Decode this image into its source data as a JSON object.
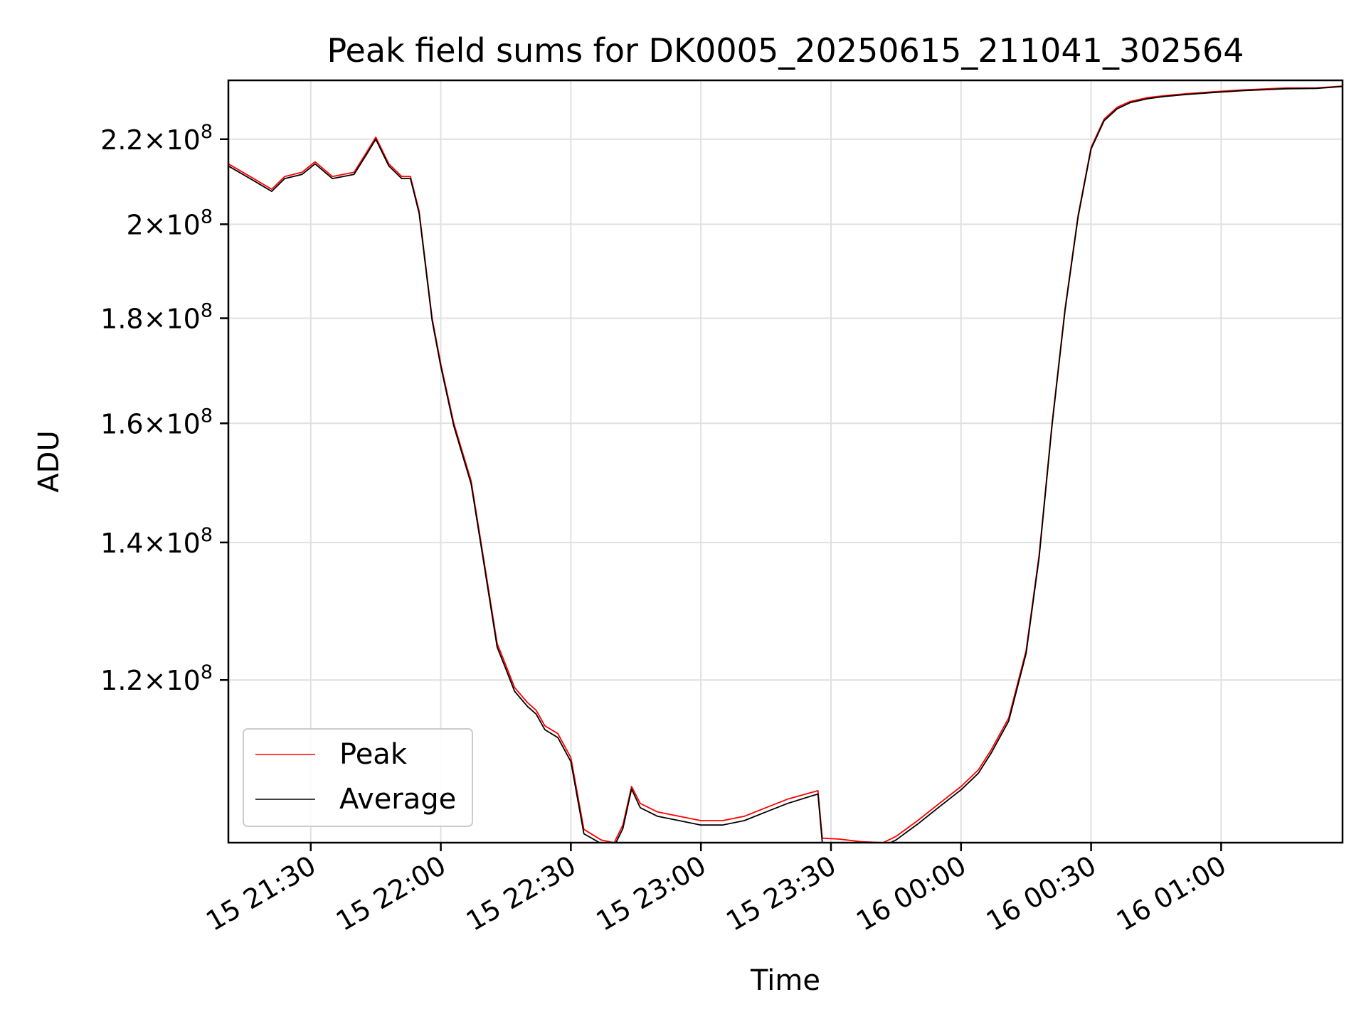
{
  "chart_data": {
    "type": "line",
    "title": "Peak field sums for DK0005_20250615_211041_302564",
    "xlabel": "Time",
    "ylabel": "ADU",
    "yscale": "log",
    "grid": true,
    "legend_position": "lower-left",
    "xlim": [
      "15 21:11",
      "16 01:28"
    ],
    "ylim": [
      100000000,
      235000000
    ],
    "xticks": [
      {
        "t": "15 21:30",
        "label": "15 21:30"
      },
      {
        "t": "15 22:00",
        "label": "15 22:00"
      },
      {
        "t": "15 22:30",
        "label": "15 22:30"
      },
      {
        "t": "15 23:00",
        "label": "15 23:00"
      },
      {
        "t": "15 23:30",
        "label": "15 23:30"
      },
      {
        "t": "16 00:00",
        "label": "16 00:00"
      },
      {
        "t": "16 00:30",
        "label": "16 00:30"
      },
      {
        "t": "16 01:00",
        "label": "16 01:00"
      }
    ],
    "yticks": [
      {
        "v": 120000000,
        "mant": "1.2",
        "exp": "8"
      },
      {
        "v": 140000000,
        "mant": "1.4",
        "exp": "8"
      },
      {
        "v": 160000000,
        "mant": "1.6",
        "exp": "8"
      },
      {
        "v": 180000000,
        "mant": "1.8",
        "exp": "8"
      },
      {
        "v": 200000000,
        "mant": "2",
        "exp": "8"
      },
      {
        "v": 220000000,
        "mant": "2.2",
        "exp": "8"
      }
    ],
    "series": [
      {
        "name": "Peak",
        "color": "#ff0000",
        "x": [
          "15 21:11",
          "15 21:16",
          "15 21:21",
          "15 21:24",
          "15 21:28",
          "15 21:31",
          "15 21:35",
          "15 21:40",
          "15 21:43",
          "15 21:45",
          "15 21:48",
          "15 21:51",
          "15 21:53",
          "15 21:55",
          "15 21:58",
          "15 22:00",
          "15 22:03",
          "15 22:07",
          "15 22:10",
          "15 22:13",
          "15 22:15",
          "15 22:17",
          "15 22:20",
          "15 22:22",
          "15 22:24",
          "15 22:27",
          "15 22:30",
          "15 22:33",
          "15 22:37",
          "15 22:40",
          "15 22:42",
          "15 22:44",
          "15 22:46",
          "15 22:50",
          "15 22:55",
          "15 23:00",
          "15 23:05",
          "15 23:10",
          "15 23:15",
          "15 23:20",
          "15 23:27",
          "15 23:28",
          "15 23:32",
          "15 23:37",
          "15 23:42",
          "15 23:45",
          "15 23:50",
          "15 23:55",
          "16 00:00",
          "16 00:04",
          "16 00:07",
          "16 00:11",
          "16 00:15",
          "16 00:18",
          "16 00:21",
          "16 00:24",
          "16 00:27",
          "16 00:30",
          "16 00:33",
          "16 00:36",
          "16 00:39",
          "16 00:43",
          "16 00:47",
          "16 00:52",
          "16 00:58",
          "16 01:05",
          "16 01:15",
          "16 01:22",
          "16 01:28"
        ],
        "values": [
          214000000,
          211000000,
          208000000,
          211000000,
          212000000,
          214500000,
          211000000,
          212000000,
          217000000,
          220500000,
          214000000,
          211000000,
          211000000,
          203000000,
          180000000,
          171000000,
          160000000,
          150000000,
          137000000,
          125000000,
          122000000,
          119000000,
          117000000,
          116000000,
          114000000,
          113000000,
          110000000,
          101500000,
          100300000,
          100000000,
          102000000,
          106500000,
          104500000,
          103500000,
          103000000,
          102500000,
          102500000,
          103000000,
          104000000,
          105000000,
          106000000,
          100500000,
          100400000,
          100100000,
          100000000,
          100700000,
          102500000,
          104500000,
          106500000,
          108500000,
          111000000,
          115000000,
          124000000,
          138000000,
          160000000,
          182000000,
          202000000,
          218000000,
          225000000,
          228000000,
          229500000,
          230500000,
          231000000,
          231500000,
          232000000,
          232500000,
          233000000,
          233000000,
          233500000
        ]
      },
      {
        "name": "Average",
        "color": "#000000",
        "x": [
          "15 21:11",
          "15 21:16",
          "15 21:21",
          "15 21:24",
          "15 21:28",
          "15 21:31",
          "15 21:35",
          "15 21:40",
          "15 21:43",
          "15 21:45",
          "15 21:48",
          "15 21:51",
          "15 21:53",
          "15 21:55",
          "15 21:58",
          "15 22:00",
          "15 22:03",
          "15 22:07",
          "15 22:10",
          "15 22:13",
          "15 22:15",
          "15 22:17",
          "15 22:20",
          "15 22:22",
          "15 22:24",
          "15 22:27",
          "15 22:30",
          "15 22:33",
          "15 22:37",
          "15 22:40",
          "15 22:42",
          "15 22:44",
          "15 22:46",
          "15 22:50",
          "15 22:55",
          "15 23:00",
          "15 23:05",
          "15 23:10",
          "15 23:15",
          "15 23:20",
          "15 23:27",
          "15 23:28",
          "15 23:32",
          "15 23:37",
          "15 23:42",
          "15 23:45",
          "15 23:50",
          "15 23:55",
          "16 00:00",
          "16 00:04",
          "16 00:07",
          "16 00:11",
          "16 00:15",
          "16 00:18",
          "16 00:21",
          "16 00:24",
          "16 00:27",
          "16 00:30",
          "16 00:33",
          "16 00:36",
          "16 00:39",
          "16 00:43",
          "16 00:47",
          "16 00:52",
          "16 00:58",
          "16 01:05",
          "16 01:15",
          "16 01:22",
          "16 01:28"
        ],
        "values": [
          213500000,
          210500000,
          207500000,
          210500000,
          211500000,
          214000000,
          210500000,
          211500000,
          216500000,
          220000000,
          213500000,
          210500000,
          210500000,
          202500000,
          179500000,
          170500000,
          159500000,
          149500000,
          136500000,
          124500000,
          121500000,
          118500000,
          116500000,
          115500000,
          113500000,
          112500000,
          109500000,
          101000000,
          99900000,
          99600000,
          101600000,
          106200000,
          104000000,
          103000000,
          102500000,
          102000000,
          102000000,
          102500000,
          103500000,
          104500000,
          105600000,
          100000000,
          99900000,
          99700000,
          99600000,
          100300000,
          102100000,
          104100000,
          106100000,
          108100000,
          110600000,
          114600000,
          123600000,
          137600000,
          159600000,
          181600000,
          201600000,
          217600000,
          224600000,
          227600000,
          229200000,
          230200000,
          230800000,
          231300000,
          231800000,
          232300000,
          232800000,
          232900000,
          233400000
        ]
      }
    ]
  }
}
